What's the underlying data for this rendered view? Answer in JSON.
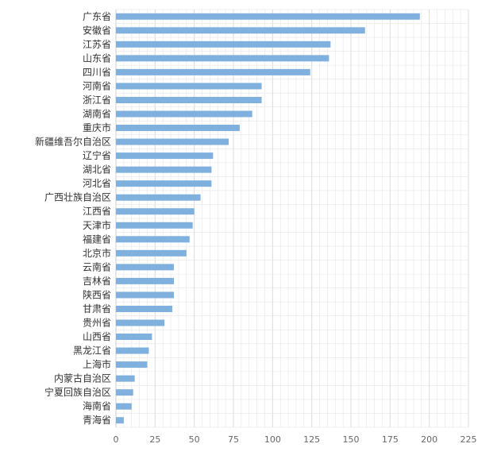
{
  "chart_data": {
    "type": "bar",
    "orientation": "horizontal",
    "categories": [
      "广东省",
      "安徽省",
      "江苏省",
      "山东省",
      "四川省",
      "河南省",
      "浙江省",
      "湖南省",
      "重庆市",
      "新疆维吾尔自治区",
      "辽宁省",
      "湖北省",
      "河北省",
      "广西壮族自治区",
      "江西省",
      "天津市",
      "福建省",
      "北京市",
      "云南省",
      "吉林省",
      "陕西省",
      "甘肃省",
      "贵州省",
      "山西省",
      "黑龙江省",
      "上海市",
      "内蒙古自治区",
      "宁夏回族自治区",
      "海南省",
      "青海省"
    ],
    "values": [
      194,
      159,
      137,
      136,
      124,
      93,
      93,
      87,
      79,
      72,
      62,
      61,
      61,
      54,
      50,
      49,
      47,
      45,
      37,
      37,
      37,
      36,
      31,
      23,
      21,
      20,
      12,
      11,
      10,
      5
    ],
    "xlim": [
      0,
      225
    ],
    "xticks": [
      "0",
      "25",
      "50",
      "75",
      "100",
      "125",
      "150",
      "175",
      "200",
      "225"
    ],
    "grid": true,
    "bar_color": "#7fb0de",
    "grid_color": "#e6e6e6"
  }
}
